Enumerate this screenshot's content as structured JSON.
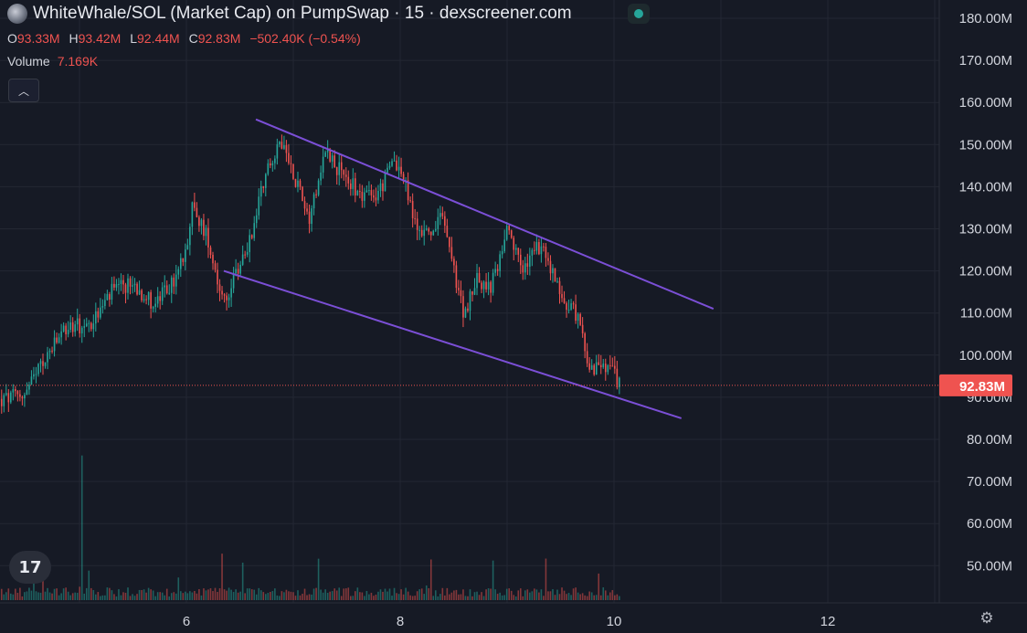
{
  "header": {
    "title": "WhiteWhale/SOL (Market Cap) on PumpSwap · 15 · dexscreener.com",
    "icons": {
      "logo": "token-logo-icon",
      "status": "live-status-dot-icon",
      "collapse": "chevron-up-icon",
      "brand": "tradingview-logo-icon",
      "settings": "settings-gear-icon"
    }
  },
  "ohlc": {
    "o_label": "O",
    "o": "93.33M",
    "h_label": "H",
    "h": "93.42M",
    "l_label": "L",
    "l": "92.44M",
    "c_label": "C",
    "c": "92.83M",
    "change": "−502.40K (−0.54%)"
  },
  "volume": {
    "label": "Volume",
    "value": "7.169K"
  },
  "colors": {
    "background": "#161a25",
    "up": "#26a69a",
    "down": "#ef5350",
    "channel": "#7b4fd6",
    "grid": "#232733",
    "text": "#d1d4dc",
    "price_tag": "#ef5350"
  },
  "chart_data": {
    "type": "candlestick",
    "title": "WhiteWhale/SOL (Market Cap) on PumpSwap · 15 · dexscreener.com",
    "y_axis": {
      "min": 42,
      "max": 182,
      "unit": "M",
      "ticks": [
        "50.00M",
        "60.00M",
        "70.00M",
        "80.00M",
        "90.00M",
        "100.00M",
        "110.00M",
        "120.00M",
        "130.00M",
        "140.00M",
        "150.00M",
        "160.00M",
        "170.00M",
        "180.00M"
      ]
    },
    "x_axis": {
      "min": 4.25,
      "max": 13.0,
      "ticks": [
        "6",
        "8",
        "10",
        "12"
      ]
    },
    "last_price": 92.83,
    "last_price_label": "92.83M",
    "close_path": [
      [
        4.25,
        89
      ],
      [
        4.5,
        91
      ],
      [
        4.7,
        100
      ],
      [
        4.9,
        107
      ],
      [
        5.1,
        107
      ],
      [
        5.3,
        115
      ],
      [
        5.5,
        117
      ],
      [
        5.7,
        112
      ],
      [
        5.9,
        118
      ],
      [
        6.0,
        126
      ],
      [
        6.05,
        135
      ],
      [
        6.2,
        128
      ],
      [
        6.35,
        112
      ],
      [
        6.45,
        118
      ],
      [
        6.6,
        128
      ],
      [
        6.75,
        145
      ],
      [
        6.9,
        150
      ],
      [
        7.05,
        140
      ],
      [
        7.15,
        133
      ],
      [
        7.3,
        149
      ],
      [
        7.45,
        143
      ],
      [
        7.6,
        139
      ],
      [
        7.75,
        137
      ],
      [
        7.85,
        141
      ],
      [
        7.95,
        147
      ],
      [
        8.05,
        140
      ],
      [
        8.15,
        130
      ],
      [
        8.3,
        129
      ],
      [
        8.4,
        133
      ],
      [
        8.5,
        120
      ],
      [
        8.6,
        109
      ],
      [
        8.7,
        118
      ],
      [
        8.85,
        116
      ],
      [
        9.0,
        129
      ],
      [
        9.15,
        120
      ],
      [
        9.3,
        126
      ],
      [
        9.45,
        118
      ],
      [
        9.55,
        112
      ],
      [
        9.65,
        110
      ],
      [
        9.75,
        99
      ],
      [
        9.85,
        96
      ],
      [
        9.95,
        97
      ],
      [
        10.05,
        93.33
      ]
    ],
    "drawn_lines": [
      {
        "name": "channel-upper",
        "from": [
          6.65,
          156
        ],
        "to": [
          10.93,
          111
        ]
      },
      {
        "name": "channel-lower",
        "from": [
          6.35,
          120
        ],
        "to": [
          10.63,
          85
        ]
      }
    ]
  }
}
